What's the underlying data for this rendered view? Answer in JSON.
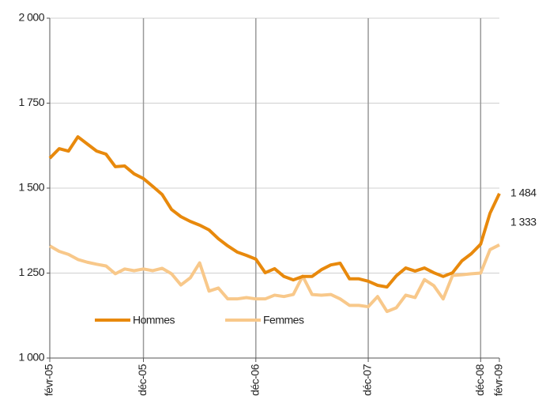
{
  "chart_data": {
    "type": "line",
    "categories": [
      "févr-05",
      null,
      null,
      null,
      null,
      null,
      null,
      null,
      null,
      null,
      "déc-05",
      null,
      null,
      null,
      null,
      null,
      null,
      null,
      null,
      null,
      null,
      null,
      "déc-06",
      null,
      null,
      null,
      null,
      null,
      null,
      null,
      null,
      null,
      null,
      null,
      "déc-07",
      null,
      null,
      null,
      null,
      null,
      null,
      null,
      null,
      null,
      null,
      null,
      "déc-08",
      null,
      "févr-09"
    ],
    "series": [
      {
        "name": "Hommes",
        "color": "#e8890c",
        "values": [
          1588,
          1616,
          1609,
          1651,
          1630,
          1609,
          1600,
          1563,
          1565,
          1542,
          1528,
          1505,
          1481,
          1437,
          1416,
          1402,
          1391,
          1377,
          1351,
          1330,
          1312,
          1302,
          1291,
          1251,
          1263,
          1240,
          1230,
          1240,
          1240,
          1260,
          1274,
          1279,
          1233,
          1233,
          1226,
          1214,
          1209,
          1242,
          1265,
          1256,
          1265,
          1251,
          1240,
          1251,
          1286,
          1307,
          1335,
          1426,
          1484
        ],
        "value_labels": [
          null,
          null,
          null,
          null,
          null,
          null,
          null,
          null,
          null,
          null,
          null,
          null,
          null,
          null,
          null,
          null,
          null,
          null,
          null,
          null,
          null,
          null,
          null,
          null,
          null,
          null,
          null,
          null,
          null,
          null,
          null,
          null,
          null,
          null,
          null,
          null,
          null,
          null,
          null,
          null,
          null,
          null,
          null,
          null,
          null,
          null,
          null,
          null,
          "1 484"
        ]
      },
      {
        "name": "Femmes",
        "color": "#f8c88a",
        "values": [
          1330,
          1314,
          1305,
          1290,
          1282,
          1276,
          1271,
          1248,
          1262,
          1257,
          1262,
          1257,
          1264,
          1248,
          1215,
          1236,
          1280,
          1197,
          1206,
          1174,
          1174,
          1178,
          1174,
          1174,
          1185,
          1181,
          1187,
          1241,
          1187,
          1185,
          1187,
          1174,
          1155,
          1155,
          1151,
          1181,
          1137,
          1148,
          1185,
          1178,
          1231,
          1213,
          1174,
          1243,
          1245,
          1248,
          1250,
          1319,
          1333
        ],
        "value_labels": [
          null,
          null,
          null,
          null,
          null,
          null,
          null,
          null,
          null,
          null,
          null,
          null,
          null,
          null,
          null,
          null,
          null,
          null,
          null,
          null,
          null,
          null,
          null,
          null,
          null,
          null,
          null,
          null,
          null,
          null,
          null,
          null,
          null,
          null,
          null,
          null,
          null,
          null,
          null,
          null,
          null,
          null,
          null,
          null,
          null,
          null,
          null,
          null,
          "1 333"
        ]
      }
    ],
    "ylim": [
      1000,
      2000
    ],
    "yticks": [
      {
        "value": 1000,
        "label": "1 000"
      },
      {
        "value": 1250,
        "label": "1 250"
      },
      {
        "value": 1500,
        "label": "1 500"
      },
      {
        "value": 1750,
        "label": "1 750"
      },
      {
        "value": 2000,
        "label": "2 000"
      }
    ],
    "grid": true,
    "legend": "bottom-left"
  }
}
